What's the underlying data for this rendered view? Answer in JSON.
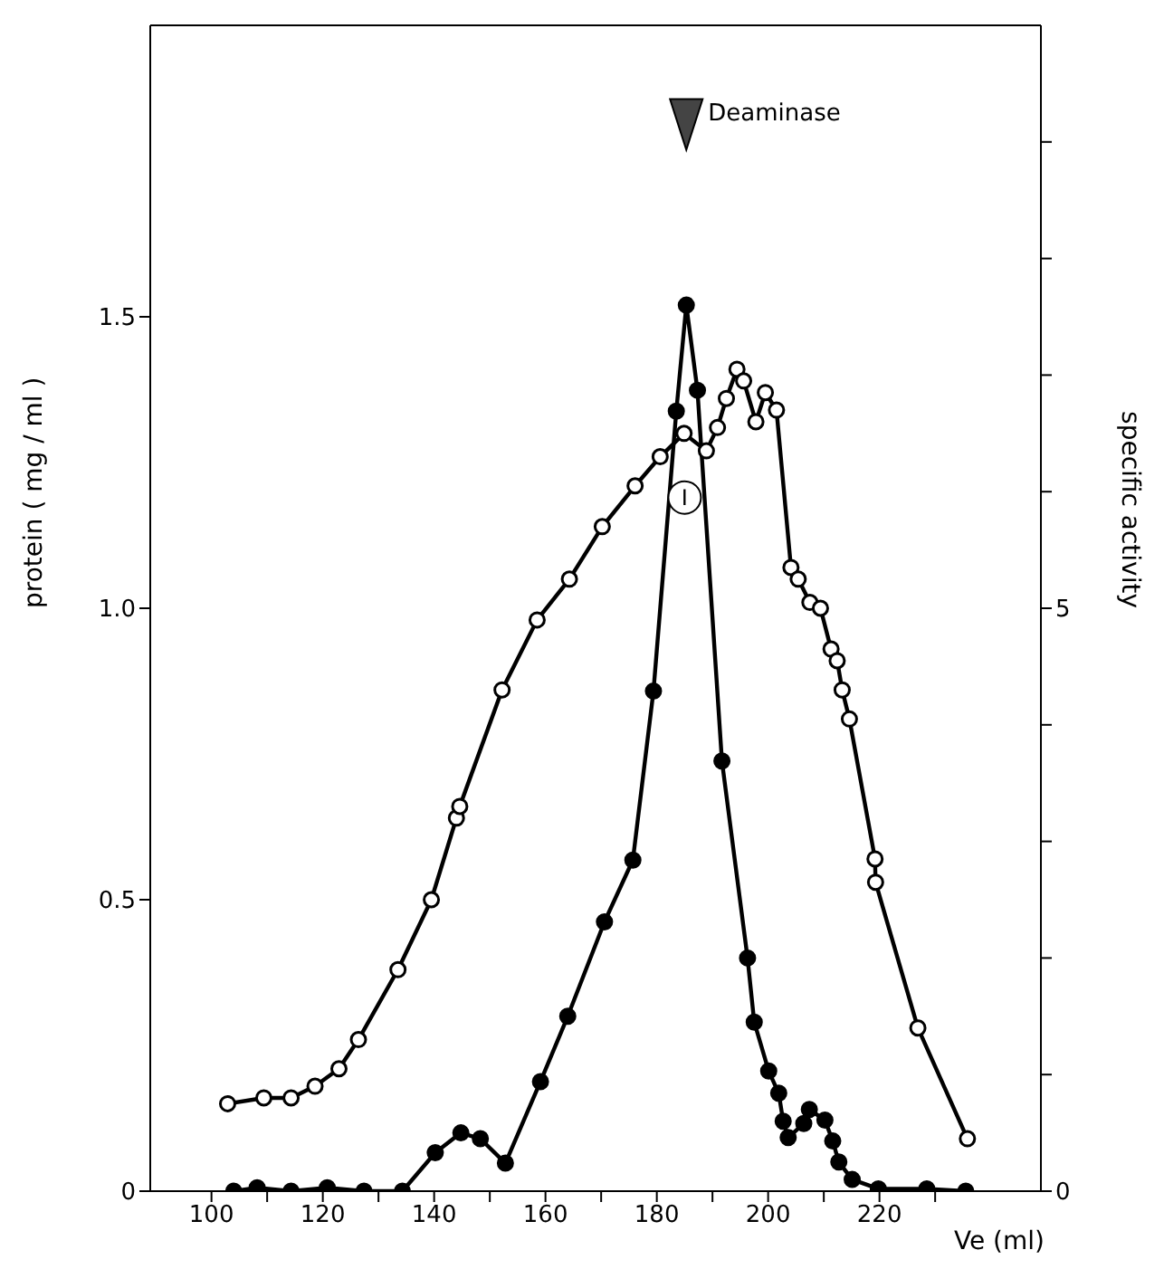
{
  "chart_data": {
    "type": "line",
    "xlabel": "Ve (ml)",
    "ylabel": "protein ( mg / ml )",
    "y2label": "specific activity",
    "xlim": [
      89,
      249
    ],
    "xticks": [
      100,
      {
        "value": 110,
        "label": null
      },
      120,
      {
        "value": 130,
        "label": null
      },
      140,
      {
        "value": 150,
        "label": null
      },
      160,
      {
        "value": 170,
        "label": null
      },
      180,
      {
        "value": 190,
        "label": null
      },
      200,
      {
        "value": 210,
        "label": null
      },
      220,
      {
        "value": 230,
        "label": null
      }
    ],
    "ylim": [
      0,
      2
    ],
    "yticks": [
      0,
      {
        "value": 0.5,
        "label": "0.5"
      },
      {
        "value": 1,
        "label": "1.0"
      },
      {
        "value": 1.5,
        "label": "1.5"
      }
    ],
    "y2lim": [
      0,
      10
    ],
    "y2ticks": [
      0,
      {
        "value": 1,
        "label": null
      },
      {
        "value": 2,
        "label": null
      },
      {
        "value": 3,
        "label": null
      },
      {
        "value": 4,
        "label": null
      },
      5,
      {
        "value": 6,
        "label": null
      },
      {
        "value": 7,
        "label": null
      },
      {
        "value": 8,
        "label": null
      },
      {
        "value": 9,
        "label": null
      }
    ],
    "marker": "circle",
    "annotations": [
      {
        "text": "Deaminase",
        "x": 185.3,
        "y": 1.83
      },
      {
        "text": "I",
        "x": 185,
        "y": 1.19
      }
    ],
    "series": [
      {
        "color": "#000000",
        "axis": "y",
        "x": [
          102.9,
          109.4,
          114.3,
          118.6,
          122.9,
          126.4,
          133.5,
          139.5,
          144.0,
          144.6,
          152.2,
          158.5,
          164.3,
          170.2,
          176.1,
          180.6,
          184.9,
          188.9,
          190.9,
          192.5,
          194.4,
          195.6,
          197.8,
          199.5,
          201.5,
          204.1,
          205.4,
          207.5,
          209.4,
          211.3,
          212.4,
          213.3,
          214.6,
          219.2,
          219.3,
          226.9,
          235.8
        ],
        "values": [
          0.15,
          0.16,
          0.16,
          0.18,
          0.21,
          0.26,
          0.38,
          0.5,
          0.64,
          0.66,
          0.86,
          0.98,
          1.05,
          1.14,
          1.21,
          1.26,
          1.3,
          1.27,
          1.31,
          1.36,
          1.41,
          1.39,
          1.32,
          1.37,
          1.34,
          1.07,
          1.05,
          1.01,
          1.0,
          0.93,
          0.91,
          0.86,
          0.81,
          0.57,
          0.53,
          0.28,
          0.09
        ]
      },
      {
        "color": "#000000",
        "axis": "y2",
        "x": [
          104.0,
          108.2,
          114.3,
          120.8,
          127.4,
          134.3,
          140.2,
          144.8,
          148.3,
          152.8,
          159.1,
          164.0,
          170.6,
          175.7,
          179.4,
          183.5,
          185.3,
          187.3,
          191.7,
          196.3,
          197.5,
          200.1,
          201.9,
          202.7,
          203.6,
          206.4,
          207.4,
          210.2,
          211.6,
          212.7,
          215.1,
          219.8,
          228.5,
          235.5
        ],
        "values": [
          0,
          0.03,
          0,
          0.03,
          0,
          0,
          0.33,
          0.5,
          0.45,
          0.24,
          0.94,
          1.5,
          2.31,
          2.84,
          4.29,
          6.69,
          7.6,
          6.87,
          3.69,
          2.0,
          1.45,
          1.03,
          0.84,
          0.6,
          0.46,
          0.58,
          0.7,
          0.61,
          0.43,
          0.25,
          0.1,
          0.02,
          0.02,
          0
        ]
      }
    ]
  }
}
